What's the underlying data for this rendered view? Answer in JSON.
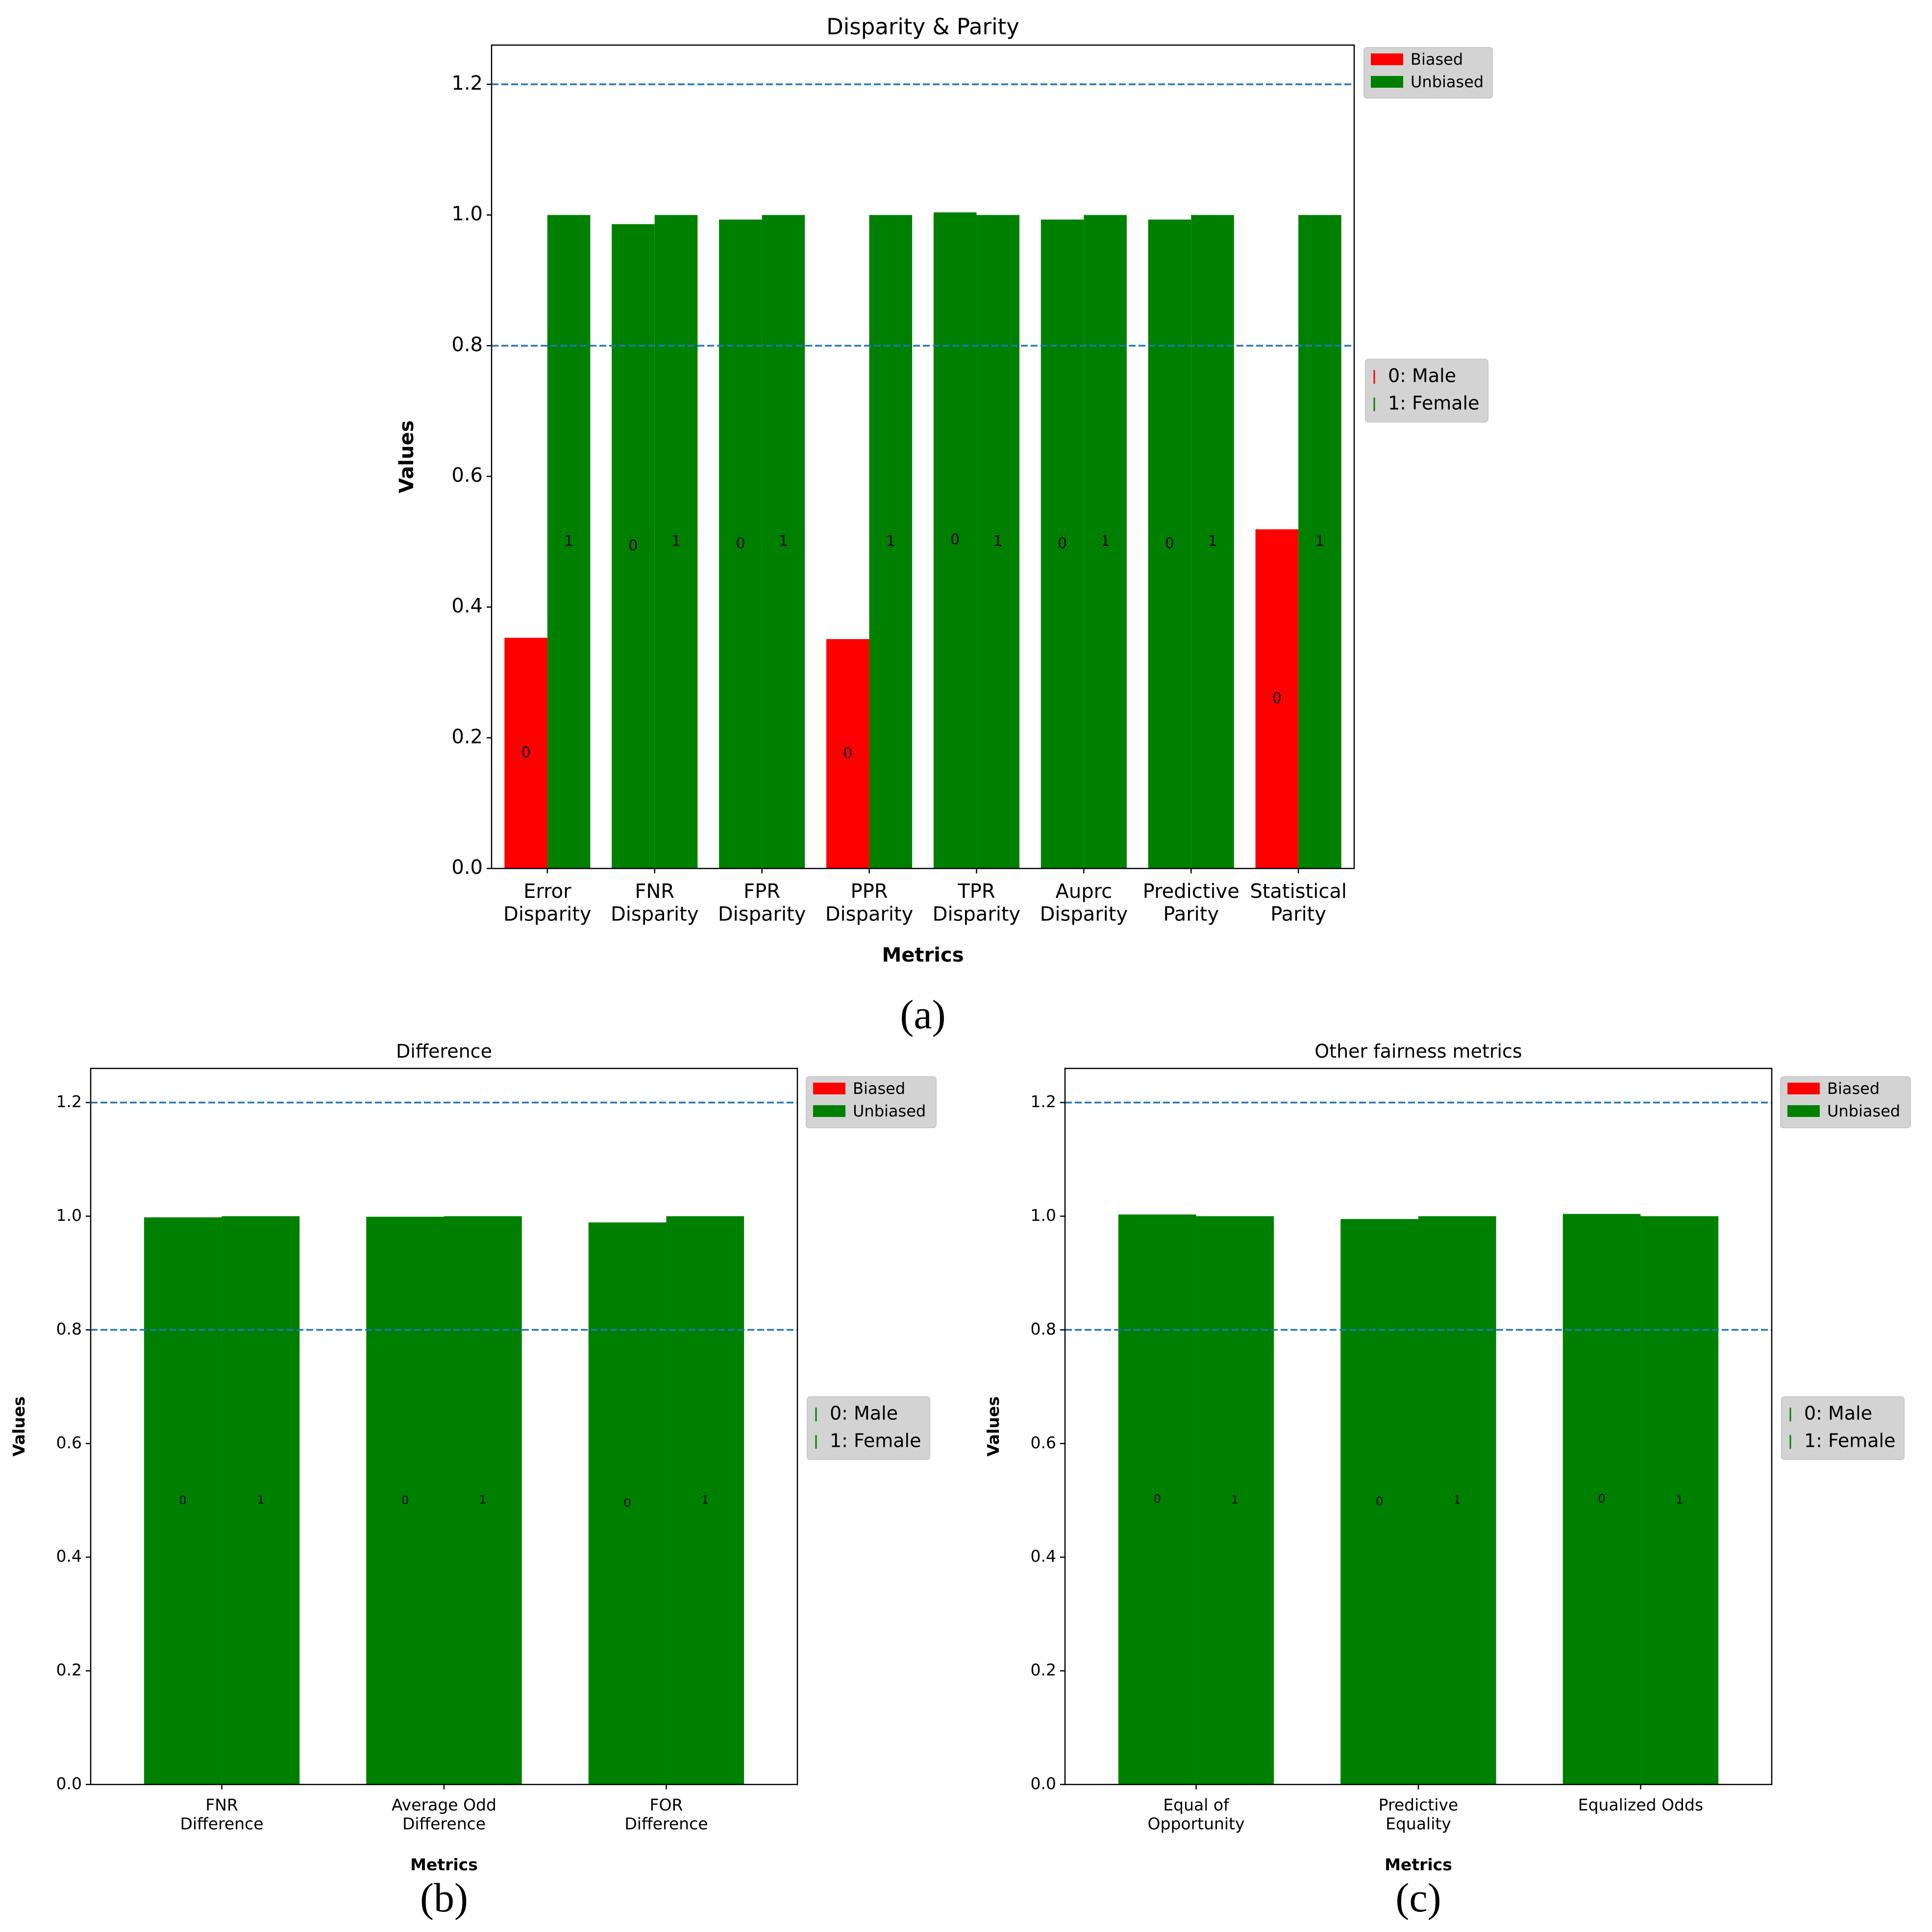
{
  "chart_data": [
    {
      "type": "bar",
      "title": "Disparity & Parity",
      "xlabel": "Metrics",
      "ylabel": "Values",
      "ylim": [
        0,
        1.26
      ],
      "yticks": [
        "0.0",
        "0.2",
        "0.4",
        "0.6",
        "0.8",
        "1.0",
        "1.2"
      ],
      "categories": [
        [
          "Error",
          "Disparity"
        ],
        [
          "FNR",
          "Disparity"
        ],
        [
          "FPR",
          "Disparity"
        ],
        [
          "PPR",
          "Disparity"
        ],
        [
          "TPR",
          "Disparity"
        ],
        [
          "Auprc",
          "Disparity"
        ],
        [
          "Predictive",
          "Parity"
        ],
        [
          "Statistical",
          "Parity"
        ]
      ],
      "series": [
        {
          "name": "0",
          "values": [
            0.353,
            0.986,
            0.993,
            0.351,
            1.004,
            0.993,
            0.993,
            0.519
          ],
          "colors": [
            "#ff0000",
            "#008000",
            "#008000",
            "#ff0000",
            "#008000",
            "#008000",
            "#008000",
            "#ff0000"
          ]
        },
        {
          "name": "1",
          "values": [
            1.0,
            1.0,
            1.0,
            1.0,
            1.0,
            1.0,
            1.0,
            1.0
          ],
          "colors": [
            "#008000",
            "#008000",
            "#008000",
            "#008000",
            "#008000",
            "#008000",
            "#008000",
            "#008000"
          ]
        }
      ],
      "bar_labels": [
        "0",
        "1"
      ],
      "threshold_lines": [
        0.8,
        1.2
      ],
      "legend_bias": [
        {
          "label": "Biased",
          "color": "#ff0000"
        },
        {
          "label": "Unbiased",
          "color": "#008000"
        }
      ],
      "legend_groups": [
        {
          "label": "0: Male",
          "color": "#ff0000"
        },
        {
          "label": "1: Female",
          "color": "#008000"
        }
      ],
      "caption": "(a)"
    },
    {
      "type": "bar",
      "title": "Difference",
      "xlabel": "Metrics",
      "ylabel": "Values",
      "ylim": [
        0,
        1.26
      ],
      "yticks": [
        "0.0",
        "0.2",
        "0.4",
        "0.6",
        "0.8",
        "1.0",
        "1.2"
      ],
      "categories": [
        [
          "FNR",
          "Difference"
        ],
        [
          "Average Odd",
          "Difference"
        ],
        [
          "FOR",
          "Difference"
        ]
      ],
      "series": [
        {
          "name": "0",
          "values": [
            0.998,
            0.999,
            0.989
          ],
          "colors": [
            "#008000",
            "#008000",
            "#008000"
          ]
        },
        {
          "name": "1",
          "values": [
            1.0,
            1.0,
            1.0
          ],
          "colors": [
            "#008000",
            "#008000",
            "#008000"
          ]
        }
      ],
      "bar_labels": [
        "0",
        "1"
      ],
      "threshold_lines": [
        0.8,
        1.2
      ],
      "legend_bias": [
        {
          "label": "Biased",
          "color": "#ff0000"
        },
        {
          "label": "Unbiased",
          "color": "#008000"
        }
      ],
      "legend_groups": [
        {
          "label": "0: Male",
          "color": "#008000"
        },
        {
          "label": "1: Female",
          "color": "#008000"
        }
      ],
      "caption": "(b)"
    },
    {
      "type": "bar",
      "title": "Other fairness metrics",
      "xlabel": "Metrics",
      "ylabel": "Values",
      "ylim": [
        0,
        1.26
      ],
      "yticks": [
        "0.0",
        "0.2",
        "0.4",
        "0.6",
        "0.8",
        "1.0",
        "1.2"
      ],
      "categories": [
        [
          "Equal of",
          "Opportunity"
        ],
        [
          "Predictive",
          "Equality"
        ],
        [
          "Equalized Odds"
        ]
      ],
      "series": [
        {
          "name": "0",
          "values": [
            1.003,
            0.995,
            1.004
          ],
          "colors": [
            "#008000",
            "#008000",
            "#008000"
          ]
        },
        {
          "name": "1",
          "values": [
            1.0,
            1.0,
            1.0
          ],
          "colors": [
            "#008000",
            "#008000",
            "#008000"
          ]
        }
      ],
      "bar_labels": [
        "0",
        "1"
      ],
      "threshold_lines": [
        0.8,
        1.2
      ],
      "legend_bias": [
        {
          "label": "Biased",
          "color": "#ff0000"
        },
        {
          "label": "Unbiased",
          "color": "#008000"
        }
      ],
      "legend_groups": [
        {
          "label": "0: Male",
          "color": "#008000"
        },
        {
          "label": "1: Female",
          "color": "#008000"
        }
      ],
      "caption": "(c)"
    }
  ],
  "colors": {
    "threshold": "#1f77b4",
    "legend_bg": "#d3d3d3",
    "axis": "#000000"
  }
}
